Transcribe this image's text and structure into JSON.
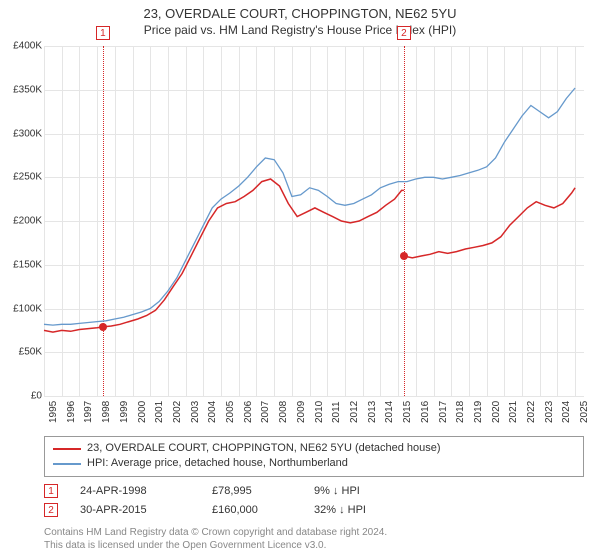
{
  "title_line1": "23, OVERDALE COURT, CHOPPINGTON, NE62 5YU",
  "title_line2": "Price paid vs. HM Land Registry's House Price Index (HPI)",
  "chart": {
    "type": "line",
    "x_domain": [
      1995,
      2025.5
    ],
    "y_domain": [
      0,
      400000
    ],
    "y_ticks": [
      0,
      50000,
      100000,
      150000,
      200000,
      250000,
      300000,
      350000,
      400000
    ],
    "y_tick_labels": [
      "£0",
      "£50K",
      "£100K",
      "£150K",
      "£200K",
      "£250K",
      "£300K",
      "£350K",
      "£400K"
    ],
    "x_ticks": [
      1995,
      1996,
      1997,
      1998,
      1999,
      2000,
      2001,
      2002,
      2003,
      2004,
      2005,
      2006,
      2007,
      2008,
      2009,
      2010,
      2011,
      2012,
      2013,
      2014,
      2015,
      2016,
      2017,
      2018,
      2019,
      2020,
      2021,
      2022,
      2023,
      2024,
      2025
    ],
    "grid_color": "#e5e5e5",
    "background_color": "#ffffff",
    "series": [
      {
        "name": "property",
        "label": "23, OVERDALE COURT, CHOPPINGTON, NE62 5YU (detached house)",
        "color": "#d62728",
        "width": 1.5,
        "segments": [
          {
            "points": [
              [
                1995.0,
                75000
              ],
              [
                1995.5,
                73000
              ],
              [
                1996.0,
                75000
              ],
              [
                1996.5,
                74000
              ],
              [
                1997.0,
                76000
              ],
              [
                1997.5,
                77000
              ],
              [
                1998.0,
                78000
              ],
              [
                1998.33,
                78995
              ],
              [
                1998.8,
                80000
              ],
              [
                1999.3,
                82000
              ],
              [
                1999.8,
                85000
              ],
              [
                2000.3,
                88000
              ],
              [
                2000.8,
                92000
              ],
              [
                2001.3,
                98000
              ],
              [
                2001.8,
                110000
              ],
              [
                2002.3,
                125000
              ],
              [
                2002.8,
                140000
              ],
              [
                2003.3,
                160000
              ],
              [
                2003.8,
                180000
              ],
              [
                2004.3,
                200000
              ],
              [
                2004.8,
                215000
              ],
              [
                2005.3,
                220000
              ],
              [
                2005.8,
                222000
              ],
              [
                2006.3,
                228000
              ],
              [
                2006.8,
                235000
              ],
              [
                2007.3,
                245000
              ],
              [
                2007.8,
                248000
              ],
              [
                2008.3,
                240000
              ],
              [
                2008.8,
                220000
              ],
              [
                2009.3,
                205000
              ],
              [
                2009.8,
                210000
              ],
              [
                2010.3,
                215000
              ],
              [
                2010.8,
                210000
              ],
              [
                2011.3,
                205000
              ],
              [
                2011.8,
                200000
              ],
              [
                2012.3,
                198000
              ],
              [
                2012.8,
                200000
              ],
              [
                2013.3,
                205000
              ],
              [
                2013.8,
                210000
              ],
              [
                2014.3,
                218000
              ],
              [
                2014.8,
                225000
              ],
              [
                2015.2,
                235000
              ],
              [
                2015.33,
                235000
              ]
            ]
          },
          {
            "points": [
              [
                2015.33,
                160000
              ],
              [
                2015.8,
                158000
              ],
              [
                2016.3,
                160000
              ],
              [
                2016.8,
                162000
              ],
              [
                2017.3,
                165000
              ],
              [
                2017.8,
                163000
              ],
              [
                2018.3,
                165000
              ],
              [
                2018.8,
                168000
              ],
              [
                2019.3,
                170000
              ],
              [
                2019.8,
                172000
              ],
              [
                2020.3,
                175000
              ],
              [
                2020.8,
                182000
              ],
              [
                2021.3,
                195000
              ],
              [
                2021.8,
                205000
              ],
              [
                2022.3,
                215000
              ],
              [
                2022.8,
                222000
              ],
              [
                2023.3,
                218000
              ],
              [
                2023.8,
                215000
              ],
              [
                2024.3,
                220000
              ],
              [
                2024.8,
                232000
              ],
              [
                2025.0,
                238000
              ]
            ]
          }
        ]
      },
      {
        "name": "hpi",
        "label": "HPI: Average price, detached house, Northumberland",
        "color": "#6699cc",
        "width": 1.3,
        "segments": [
          {
            "points": [
              [
                1995.0,
                82000
              ],
              [
                1995.5,
                81000
              ],
              [
                1996.0,
                82000
              ],
              [
                1996.5,
                82000
              ],
              [
                1997.0,
                83000
              ],
              [
                1997.5,
                84000
              ],
              [
                1998.0,
                85000
              ],
              [
                1998.5,
                86000
              ],
              [
                1999.0,
                88000
              ],
              [
                1999.5,
                90000
              ],
              [
                2000.0,
                93000
              ],
              [
                2000.5,
                96000
              ],
              [
                2001.0,
                100000
              ],
              [
                2001.5,
                108000
              ],
              [
                2002.0,
                120000
              ],
              [
                2002.5,
                135000
              ],
              [
                2003.0,
                155000
              ],
              [
                2003.5,
                175000
              ],
              [
                2004.0,
                195000
              ],
              [
                2004.5,
                215000
              ],
              [
                2005.0,
                225000
              ],
              [
                2005.5,
                232000
              ],
              [
                2006.0,
                240000
              ],
              [
                2006.5,
                250000
              ],
              [
                2007.0,
                262000
              ],
              [
                2007.5,
                272000
              ],
              [
                2008.0,
                270000
              ],
              [
                2008.5,
                255000
              ],
              [
                2009.0,
                228000
              ],
              [
                2009.5,
                230000
              ],
              [
                2010.0,
                238000
              ],
              [
                2010.5,
                235000
              ],
              [
                2011.0,
                228000
              ],
              [
                2011.5,
                220000
              ],
              [
                2012.0,
                218000
              ],
              [
                2012.5,
                220000
              ],
              [
                2013.0,
                225000
              ],
              [
                2013.5,
                230000
              ],
              [
                2014.0,
                238000
              ],
              [
                2014.5,
                242000
              ],
              [
                2015.0,
                245000
              ],
              [
                2015.5,
                245000
              ],
              [
                2016.0,
                248000
              ],
              [
                2016.5,
                250000
              ],
              [
                2017.0,
                250000
              ],
              [
                2017.5,
                248000
              ],
              [
                2018.0,
                250000
              ],
              [
                2018.5,
                252000
              ],
              [
                2019.0,
                255000
              ],
              [
                2019.5,
                258000
              ],
              [
                2020.0,
                262000
              ],
              [
                2020.5,
                272000
              ],
              [
                2021.0,
                290000
              ],
              [
                2021.5,
                305000
              ],
              [
                2022.0,
                320000
              ],
              [
                2022.5,
                332000
              ],
              [
                2023.0,
                325000
              ],
              [
                2023.5,
                318000
              ],
              [
                2024.0,
                325000
              ],
              [
                2024.5,
                340000
              ],
              [
                2025.0,
                352000
              ]
            ]
          }
        ]
      }
    ],
    "sale_markers": [
      {
        "n": "1",
        "x": 1998.33,
        "y": 78995,
        "color": "#d62728"
      },
      {
        "n": "2",
        "x": 2015.33,
        "y": 160000,
        "color": "#d62728"
      }
    ]
  },
  "legend": {
    "items": [
      {
        "color": "#d62728",
        "label": "23, OVERDALE COURT, CHOPPINGTON, NE62 5YU (detached house)"
      },
      {
        "color": "#6699cc",
        "label": "HPI: Average price, detached house, Northumberland"
      }
    ]
  },
  "sales": [
    {
      "n": "1",
      "color": "#d62728",
      "date": "24-APR-1998",
      "price": "£78,995",
      "diff": "9% ↓ HPI"
    },
    {
      "n": "2",
      "color": "#d62728",
      "date": "30-APR-2015",
      "price": "£160,000",
      "diff": "32% ↓ HPI"
    }
  ],
  "attribution_line1": "Contains HM Land Registry data © Crown copyright and database right 2024.",
  "attribution_line2": "This data is licensed under the Open Government Licence v3.0."
}
